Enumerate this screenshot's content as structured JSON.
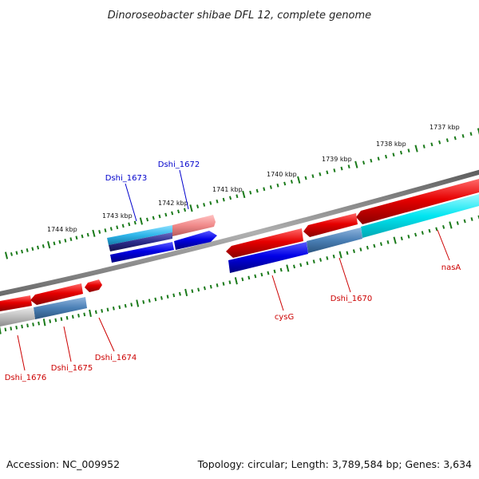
{
  "title": "Dinoroseobacter shibae DFL 12, complete genome",
  "footer": {
    "accession": "Accession: NC_009952",
    "topology": "Topology: circular; Length: 3,789,584 bp; Genes: 3,634"
  },
  "colors": {
    "forward_gene": "#e60000",
    "forward_gene_light": "#ff9a9a",
    "reverse_gene": "#0000e6",
    "reverse_gene_mid": "#4a7fb5",
    "reverse_gene_pale": "#a9a9a9",
    "reverse_gene_cyan": "#00e5f0",
    "reverse_gene_navy": "#2b2b8c",
    "backbone": "#8a8a8a",
    "tick": "#1a7a1a",
    "label_forward": "#cc0000",
    "label_reverse": "#0000cc"
  },
  "scale_labels": [
    "1737 kbp",
    "1738 kbp",
    "1739 kbp",
    "1740 kbp",
    "1741 kbp",
    "1742 kbp",
    "1743 kbp",
    "1744 kbp"
  ],
  "gene_labels": [
    {
      "text": "Dshi_1673",
      "strand": "reverse"
    },
    {
      "text": "Dshi_1672",
      "strand": "reverse"
    },
    {
      "text": "nasA",
      "strand": "forward"
    },
    {
      "text": "Dshi_1670",
      "strand": "forward"
    },
    {
      "text": "cysG",
      "strand": "forward"
    },
    {
      "text": "Dshi_1674",
      "strand": "forward"
    },
    {
      "text": "Dshi_1675",
      "strand": "forward"
    },
    {
      "text": "Dshi_1676",
      "strand": "forward"
    }
  ]
}
